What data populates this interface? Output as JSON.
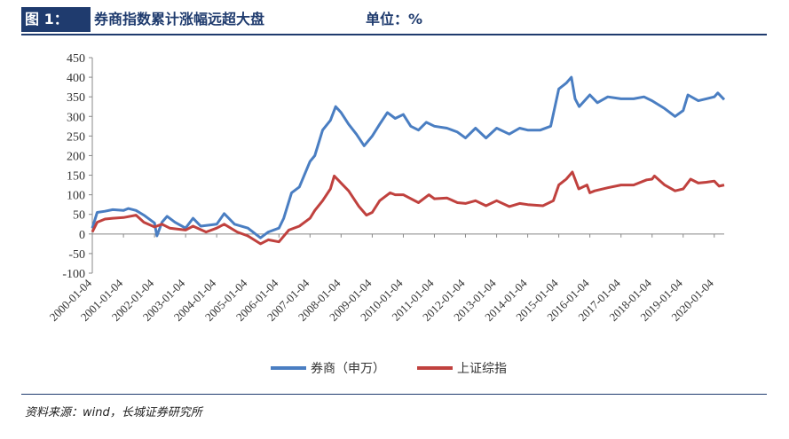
{
  "header": {
    "figure_label": "图 1：",
    "title": "券商指数累计涨幅远超大盘",
    "unit": "单位：%"
  },
  "source": "资料来源：wind，长城证券研究所",
  "colors": {
    "broker": "#4a7ec2",
    "index": "#c0413e",
    "navy": "#1f3b6e"
  },
  "chart_data": {
    "type": "line",
    "title": "",
    "xlabel": "",
    "ylabel": "",
    "ylim": [
      -100,
      450
    ],
    "y_ticks": [
      -100,
      -50,
      0,
      50,
      100,
      150,
      200,
      250,
      300,
      350,
      400,
      450
    ],
    "x_ticks": [
      "2000-01-04",
      "2001-01-04",
      "2002-01-04",
      "2003-01-04",
      "2004-01-04",
      "2005-01-04",
      "2006-01-04",
      "2007-01-04",
      "2008-01-04",
      "2009-01-04",
      "2010-01-04",
      "2011-01-04",
      "2012-01-04",
      "2013-01-04",
      "2014-01-04",
      "2015-01-04",
      "2016-01-04",
      "2017-01-04",
      "2018-01-04",
      "2019-01-04",
      "2020-01-04"
    ],
    "x_range": [
      "2000-01-04",
      "2020-04-30"
    ],
    "grid": false,
    "legend": "bottom",
    "series": [
      {
        "name": "券商（申万）",
        "color": "#4a7ec2",
        "points": [
          [
            "2000-01-04",
            15
          ],
          [
            "2000-03-01",
            55
          ],
          [
            "2000-06-01",
            58
          ],
          [
            "2000-09-01",
            62
          ],
          [
            "2001-01-04",
            60
          ],
          [
            "2001-03-01",
            65
          ],
          [
            "2001-06-01",
            60
          ],
          [
            "2001-09-01",
            48
          ],
          [
            "2002-01-04",
            28
          ],
          [
            "2002-02-01",
            -5
          ],
          [
            "2002-04-01",
            30
          ],
          [
            "2002-06-01",
            45
          ],
          [
            "2002-09-01",
            30
          ],
          [
            "2003-01-04",
            15
          ],
          [
            "2003-04-01",
            40
          ],
          [
            "2003-07-01",
            20
          ],
          [
            "2004-01-04",
            25
          ],
          [
            "2004-04-01",
            52
          ],
          [
            "2004-08-01",
            25
          ],
          [
            "2005-01-04",
            15
          ],
          [
            "2005-06-01",
            -10
          ],
          [
            "2005-09-01",
            5
          ],
          [
            "2006-01-04",
            15
          ],
          [
            "2006-03-01",
            40
          ],
          [
            "2006-06-01",
            105
          ],
          [
            "2006-09-01",
            120
          ],
          [
            "2007-01-04",
            185
          ],
          [
            "2007-03-01",
            200
          ],
          [
            "2007-06-01",
            265
          ],
          [
            "2007-09-01",
            290
          ],
          [
            "2007-11-01",
            325
          ],
          [
            "2008-01-04",
            310
          ],
          [
            "2008-04-01",
            280
          ],
          [
            "2008-07-01",
            255
          ],
          [
            "2008-10-01",
            225
          ],
          [
            "2009-01-04",
            250
          ],
          [
            "2009-04-01",
            280
          ],
          [
            "2009-07-01",
            310
          ],
          [
            "2009-10-01",
            295
          ],
          [
            "2010-01-04",
            305
          ],
          [
            "2010-04-01",
            275
          ],
          [
            "2010-07-01",
            265
          ],
          [
            "2010-10-01",
            285
          ],
          [
            "2011-01-04",
            275
          ],
          [
            "2011-06-01",
            270
          ],
          [
            "2011-10-01",
            260
          ],
          [
            "2012-01-04",
            245
          ],
          [
            "2012-05-01",
            270
          ],
          [
            "2012-09-01",
            245
          ],
          [
            "2013-01-04",
            270
          ],
          [
            "2013-06-01",
            255
          ],
          [
            "2013-10-01",
            270
          ],
          [
            "2014-01-04",
            265
          ],
          [
            "2014-06-01",
            265
          ],
          [
            "2014-10-01",
            275
          ],
          [
            "2015-01-04",
            370
          ],
          [
            "2015-04-01",
            385
          ],
          [
            "2015-06-01",
            400
          ],
          [
            "2015-07-15",
            345
          ],
          [
            "2015-09-01",
            325
          ],
          [
            "2016-01-04",
            355
          ],
          [
            "2016-04-01",
            335
          ],
          [
            "2016-08-01",
            350
          ],
          [
            "2017-01-04",
            345
          ],
          [
            "2017-06-01",
            345
          ],
          [
            "2017-10-01",
            350
          ],
          [
            "2018-01-04",
            340
          ],
          [
            "2018-06-01",
            320
          ],
          [
            "2018-10-01",
            300
          ],
          [
            "2019-01-04",
            315
          ],
          [
            "2019-03-01",
            355
          ],
          [
            "2019-07-01",
            340
          ],
          [
            "2019-10-01",
            345
          ],
          [
            "2020-01-04",
            350
          ],
          [
            "2020-02-15",
            360
          ],
          [
            "2020-04-30",
            343
          ]
        ]
      },
      {
        "name": "上证综指",
        "color": "#c0413e",
        "points": [
          [
            "2000-01-04",
            5
          ],
          [
            "2000-03-01",
            30
          ],
          [
            "2000-06-01",
            38
          ],
          [
            "2000-09-01",
            40
          ],
          [
            "2001-01-04",
            42
          ],
          [
            "2001-06-01",
            48
          ],
          [
            "2001-09-01",
            30
          ],
          [
            "2002-01-04",
            18
          ],
          [
            "2002-04-01",
            25
          ],
          [
            "2002-07-01",
            15
          ],
          [
            "2003-01-04",
            10
          ],
          [
            "2003-04-01",
            20
          ],
          [
            "2003-09-01",
            5
          ],
          [
            "2004-01-04",
            15
          ],
          [
            "2004-04-01",
            25
          ],
          [
            "2004-09-01",
            5
          ],
          [
            "2005-01-04",
            -5
          ],
          [
            "2005-06-01",
            -25
          ],
          [
            "2005-09-01",
            -15
          ],
          [
            "2006-01-04",
            -20
          ],
          [
            "2006-05-01",
            10
          ],
          [
            "2006-09-01",
            20
          ],
          [
            "2007-01-04",
            40
          ],
          [
            "2007-03-01",
            60
          ],
          [
            "2007-06-01",
            85
          ],
          [
            "2007-09-01",
            115
          ],
          [
            "2007-10-16",
            148
          ],
          [
            "2008-01-04",
            130
          ],
          [
            "2008-04-01",
            110
          ],
          [
            "2008-08-01",
            70
          ],
          [
            "2008-10-28",
            48
          ],
          [
            "2009-01-04",
            55
          ],
          [
            "2009-04-01",
            85
          ],
          [
            "2009-08-01",
            105
          ],
          [
            "2009-10-01",
            100
          ],
          [
            "2010-01-04",
            100
          ],
          [
            "2010-07-01",
            80
          ],
          [
            "2010-11-01",
            100
          ],
          [
            "2011-01-04",
            90
          ],
          [
            "2011-06-01",
            92
          ],
          [
            "2011-10-01",
            80
          ],
          [
            "2012-01-04",
            78
          ],
          [
            "2012-05-01",
            85
          ],
          [
            "2012-09-01",
            72
          ],
          [
            "2013-01-04",
            85
          ],
          [
            "2013-06-01",
            70
          ],
          [
            "2013-10-01",
            78
          ],
          [
            "2014-01-04",
            75
          ],
          [
            "2014-07-01",
            72
          ],
          [
            "2014-11-01",
            85
          ],
          [
            "2015-01-04",
            125
          ],
          [
            "2015-04-01",
            140
          ],
          [
            "2015-06-12",
            158
          ],
          [
            "2015-08-26",
            115
          ],
          [
            "2015-12-01",
            125
          ],
          [
            "2016-01-04",
            105
          ],
          [
            "2016-03-01",
            110
          ],
          [
            "2016-08-01",
            118
          ],
          [
            "2017-01-04",
            125
          ],
          [
            "2017-06-01",
            125
          ],
          [
            "2017-11-01",
            138
          ],
          [
            "2018-01-04",
            140
          ],
          [
            "2018-02-01",
            148
          ],
          [
            "2018-06-01",
            125
          ],
          [
            "2018-10-01",
            110
          ],
          [
            "2019-01-04",
            115
          ],
          [
            "2019-04-01",
            140
          ],
          [
            "2019-07-01",
            130
          ],
          [
            "2019-10-01",
            132
          ],
          [
            "2020-01-04",
            135
          ],
          [
            "2020-03-01",
            122
          ],
          [
            "2020-04-30",
            125
          ]
        ]
      }
    ]
  }
}
